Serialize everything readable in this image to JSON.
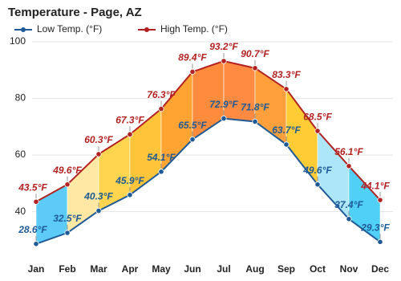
{
  "chart_data": {
    "type": "line",
    "title": "Temperature - Page, AZ",
    "categories": [
      "Jan",
      "Feb",
      "Mar",
      "Apr",
      "May",
      "Jun",
      "Jul",
      "Aug",
      "Sep",
      "Oct",
      "Nov",
      "Dec"
    ],
    "series": [
      {
        "name": "Low Temp. (°F)",
        "color": "#1f5a96",
        "values": [
          28.6,
          32.5,
          40.3,
          45.9,
          54.1,
          65.5,
          72.9,
          71.8,
          63.7,
          49.6,
          37.4,
          29.3
        ],
        "value_labels": [
          "28.6°F",
          "32.5°F",
          "40.3°F",
          "45.9°F",
          "54.1°F",
          "65.5°F",
          "72.9°F",
          "71.8°F",
          "63.7°F",
          "49.6°F",
          "37.4°F",
          "29.3°F"
        ]
      },
      {
        "name": "High Temp. (°F)",
        "color": "#b22222",
        "values": [
          43.5,
          49.6,
          60.3,
          67.3,
          76.3,
          89.4,
          93.2,
          90.7,
          83.3,
          68.5,
          56.1,
          44.1
        ],
        "value_labels": [
          "43.5°F",
          "49.6°F",
          "60.3°F",
          "67.3°F",
          "76.3°F",
          "89.4°F",
          "93.2°F",
          "90.7°F",
          "83.3°F",
          "68.5°F",
          "56.1°F",
          "44.1°F"
        ]
      }
    ],
    "band_colors": [
      "#5ccbf5",
      "#ffe8a3",
      "#ffd54f",
      "#ffc53a",
      "#ffa333",
      "#ff8c3c",
      "#ff8a42",
      "#ffa03c",
      "#ffcc36",
      "#aee6f9",
      "#4fd0f4"
    ],
    "ylim": [
      24,
      102
    ],
    "yticks": [
      40,
      60,
      80,
      100
    ],
    "grid": true
  }
}
